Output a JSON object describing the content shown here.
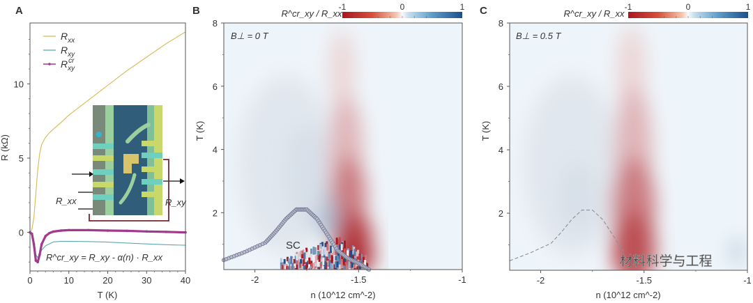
{
  "chart_data": [
    {
      "panel": "A",
      "type": "line",
      "xlabel": "T (K)",
      "ylabel": "R (kΩ)",
      "xlim": [
        0,
        40
      ],
      "ylim": [
        -2.6,
        14.1
      ],
      "xticks": [
        0,
        10,
        20,
        30,
        40
      ],
      "yticks": [
        0,
        5,
        10
      ],
      "legend": {
        "placement": "top-left",
        "entries": [
          "R_xx",
          "R_xy",
          "R^cr_xy"
        ]
      },
      "series": [
        {
          "name": "R_xx",
          "color": "#d9b850",
          "x": [
            0,
            0.5,
            1,
            1.5,
            2,
            2.5,
            3,
            4,
            5,
            6,
            8,
            10,
            15,
            20,
            25,
            30,
            35,
            40
          ],
          "y": [
            0,
            0.2,
            1.0,
            2.6,
            4.2,
            5.3,
            5.9,
            6.4,
            6.7,
            6.95,
            7.4,
            7.9,
            8.9,
            9.9,
            10.9,
            11.8,
            12.7,
            13.5
          ]
        },
        {
          "name": "R_xy",
          "color": "#5aa9b0",
          "x": [
            0,
            0.5,
            1,
            1.5,
            2,
            3,
            4,
            6,
            8,
            10,
            15,
            20,
            25,
            30,
            35,
            40
          ],
          "y": [
            0,
            -0.1,
            -0.6,
            -1.5,
            -1.7,
            -1.2,
            -0.9,
            -0.65,
            -0.6,
            -0.6,
            -0.62,
            -0.66,
            -0.72,
            -0.78,
            -0.83,
            -0.87
          ]
        },
        {
          "name": "R^cr_xy",
          "color": "#a03a8c",
          "x": [
            0,
            0.5,
            1,
            1.5,
            2,
            2.5,
            3,
            4,
            5,
            6,
            8,
            10,
            15,
            20,
            25,
            30,
            35,
            40
          ],
          "y": [
            0,
            -0.1,
            -0.8,
            -1.9,
            -2.0,
            -1.5,
            -0.8,
            -0.25,
            -0.05,
            0.05,
            0.12,
            0.15,
            0.15,
            0.12,
            0.1,
            0.06,
            0.03,
            0.0
          ]
        }
      ],
      "annotations": [
        "R^cr_xy = R_xy - α(n) · R_xx",
        "R_xx",
        "R_xy"
      ],
      "inset": "device optical micrograph"
    },
    {
      "panel": "B",
      "type": "heatmap",
      "title": "R^cr_xy / R_xx",
      "condition": "B⊥ = 0 T",
      "xlabel": "n (10^12 cm^-2)",
      "ylabel": "T (K)",
      "xlim": [
        -2.15,
        -1.0
      ],
      "ylim": [
        0.2,
        8
      ],
      "xticks": [
        -2,
        -1.5,
        -1
      ],
      "yticks": [
        2,
        4,
        6,
        8
      ],
      "colorbar": {
        "range": [
          -1,
          1
        ],
        "ticks": [
          -1,
          0,
          1
        ],
        "low_color": "#b2182b",
        "mid_color": "#f7f7f7",
        "high_color": "#2166ac"
      },
      "features": [
        {
          "name": "negative lobe",
          "n_center": -1.55,
          "T_range": [
            0.3,
            6
          ],
          "value": -0.8
        },
        {
          "name": "positive lobe",
          "n_center": -1.7,
          "T_range": [
            1,
            4
          ],
          "value": 0.3
        }
      ],
      "annotations": [
        "SC"
      ],
      "sc_dome": {
        "n": [
          -2.15,
          -2.05,
          -1.95,
          -1.9,
          -1.85,
          -1.8,
          -1.75,
          -1.7,
          -1.65,
          -1.6,
          -1.55,
          -1.5,
          -1.45
        ],
        "T": [
          0.5,
          0.75,
          1.05,
          1.4,
          1.8,
          2.1,
          2.1,
          1.8,
          1.3,
          0.8,
          0.55,
          0.4,
          0.2
        ]
      }
    },
    {
      "panel": "C",
      "type": "heatmap",
      "title": "R^cr_xy / R_xx",
      "condition": "B⊥ = 0.5 T",
      "xlabel": "n (10^12 cm^-2)",
      "ylabel": "T (K)",
      "xlim": [
        -2.15,
        -1.0
      ],
      "ylim": [
        0.2,
        8
      ],
      "xticks": [
        -2,
        -1.5,
        -1
      ],
      "yticks": [
        2,
        4,
        6,
        8
      ],
      "colorbar": {
        "range": [
          -1,
          1
        ],
        "ticks": [
          -1,
          0,
          1
        ],
        "low_color": "#b2182b",
        "mid_color": "#f7f7f7",
        "high_color": "#2166ac"
      },
      "features": [
        {
          "name": "negative stripe",
          "n_center": -1.55,
          "T_range": [
            0.2,
            6
          ],
          "value": -0.75
        },
        {
          "name": "weak positive",
          "n_center": -1.8,
          "T_range": [
            1,
            4
          ],
          "value": 0.15
        }
      ],
      "dashed_dome": {
        "n": [
          -2.15,
          -2.05,
          -1.95,
          -1.9,
          -1.85,
          -1.8,
          -1.75,
          -1.7,
          -1.65,
          -1.6
        ],
        "T": [
          0.5,
          0.75,
          1.05,
          1.4,
          1.8,
          2.1,
          2.1,
          1.8,
          1.3,
          0.8
        ]
      }
    }
  ],
  "panel_labels": [
    "A",
    "B",
    "C"
  ],
  "watermark": "材料科学与工程"
}
